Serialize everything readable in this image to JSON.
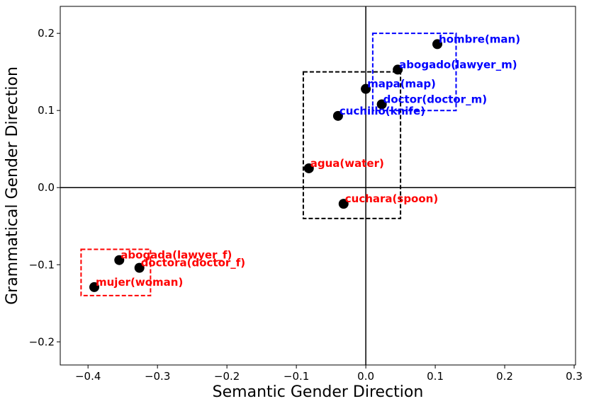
{
  "chart_data": {
    "type": "scatter",
    "title": "",
    "xlabel": "Semantic Gender Direction",
    "ylabel": "Grammatical Gender Direction",
    "xlim": [
      -0.44,
      0.302
    ],
    "ylim": [
      -0.23,
      0.235
    ],
    "xticks": [
      -0.4,
      -0.3,
      -0.2,
      -0.1,
      0.0,
      0.1,
      0.2,
      0.3
    ],
    "xtick_labels": [
      "−0.4",
      "−0.3",
      "−0.2",
      "−0.1",
      "0.0",
      "0.1",
      "0.2",
      "0.3"
    ],
    "yticks": [
      -0.2,
      -0.1,
      0.0,
      0.1,
      0.2
    ],
    "ytick_labels": [
      "−0.2",
      "−0.1",
      "0.0",
      "0.1",
      "0.2"
    ],
    "grid": false,
    "reference_lines": {
      "x": 0.0,
      "y": 0.0
    },
    "points": [
      {
        "label": "hombre(man)",
        "x": 0.103,
        "y": 0.186,
        "color": "#0000ff"
      },
      {
        "label": "abogado(lawyer_m)",
        "x": 0.046,
        "y": 0.153,
        "color": "#0000ff"
      },
      {
        "label": "mapa(map)",
        "x": 0.0,
        "y": 0.128,
        "color": "#0000ff"
      },
      {
        "label": "doctor(doctor_m)",
        "x": 0.023,
        "y": 0.108,
        "color": "#0000ff"
      },
      {
        "label": "cuchillo(knife)",
        "x": -0.04,
        "y": 0.093,
        "color": "#0000ff"
      },
      {
        "label": "agua(water)",
        "x": -0.082,
        "y": 0.025,
        "color": "#ff0000"
      },
      {
        "label": "cuchara(spoon)",
        "x": -0.032,
        "y": -0.021,
        "color": "#ff0000"
      },
      {
        "label": "abogada(lawyer_f)",
        "x": -0.355,
        "y": -0.094,
        "color": "#ff0000"
      },
      {
        "label": "doctora(doctor_f)",
        "x": -0.326,
        "y": -0.104,
        "color": "#ff0000"
      },
      {
        "label": "mujer(woman)",
        "x": -0.391,
        "y": -0.129,
        "color": "#ff0000"
      }
    ],
    "boxes": [
      {
        "x0": 0.01,
        "x1": 0.13,
        "y0": 0.1,
        "y1": 0.2,
        "color": "#0000ff"
      },
      {
        "x0": -0.09,
        "x1": 0.05,
        "y0": -0.04,
        "y1": 0.15,
        "color": "#000000"
      },
      {
        "x0": -0.41,
        "x1": -0.31,
        "y0": -0.14,
        "y1": -0.08,
        "color": "#ff0000"
      }
    ]
  }
}
